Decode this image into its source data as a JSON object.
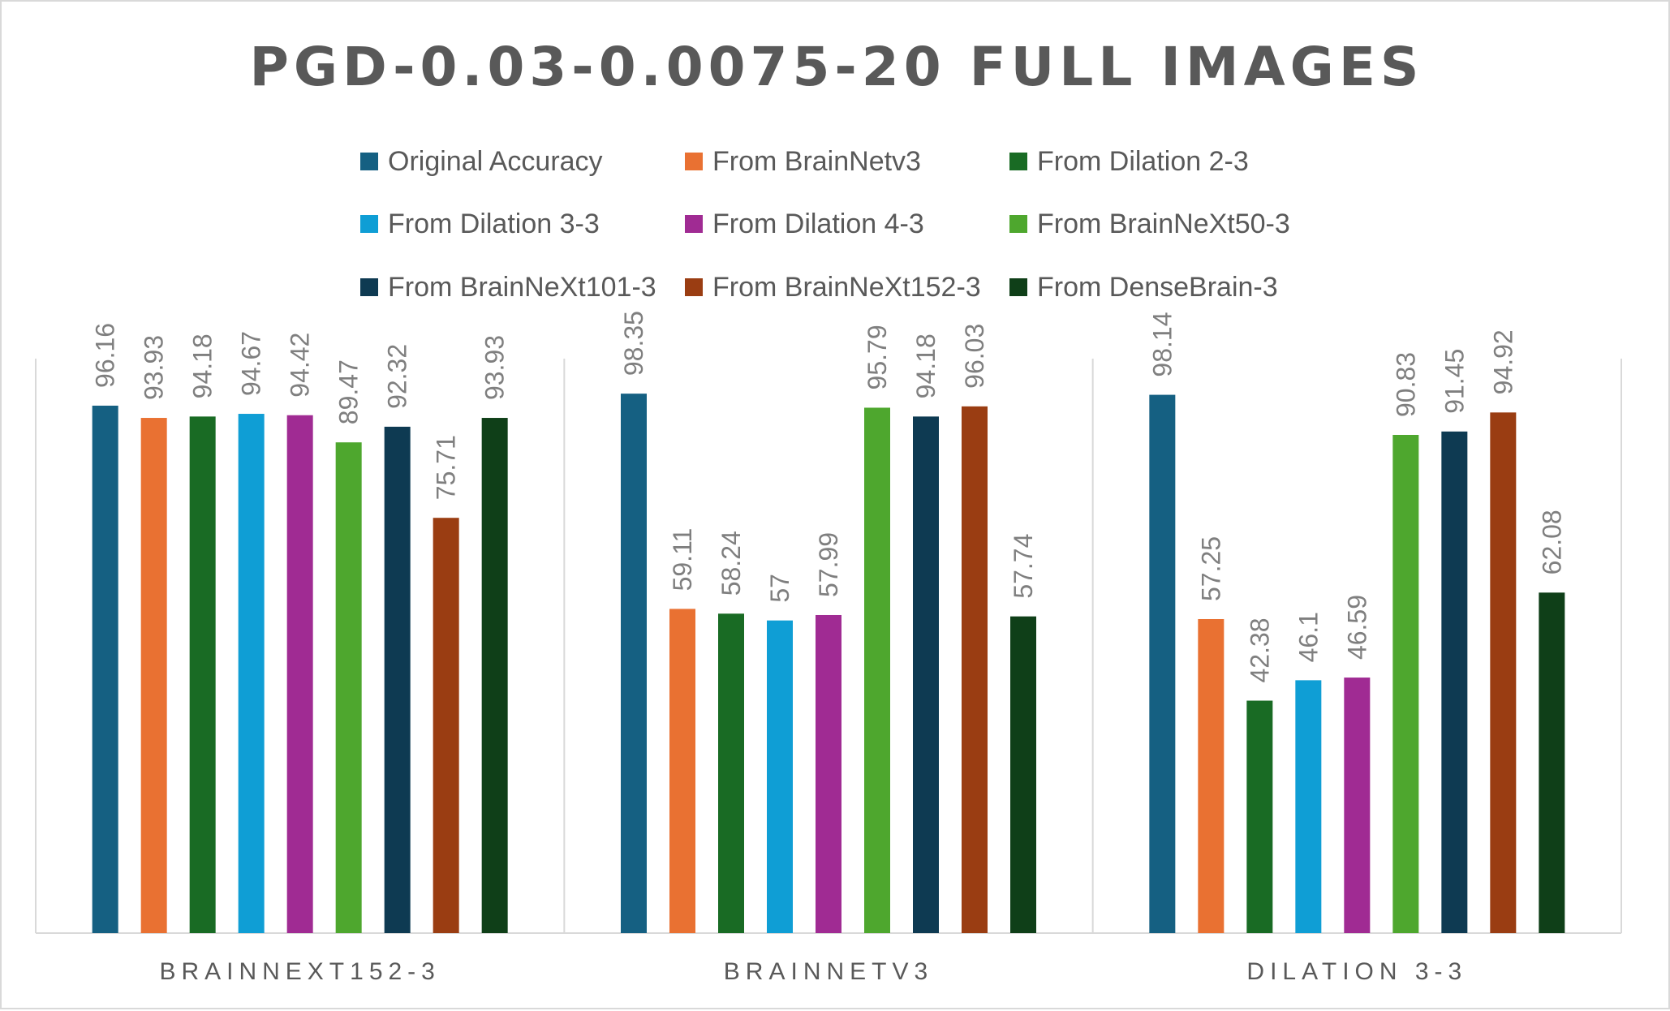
{
  "chart_data": {
    "type": "bar",
    "title": "PGD-0.03-0.0075-20 FULL IMAGES",
    "xlabel": "",
    "ylabel": "",
    "ylim": [
      0,
      103
    ],
    "grid": "vertical category separators only",
    "legend_position": "top",
    "categories": [
      "BRAINNEXT152-3",
      "BRAINNETV3",
      "DILATION 3-3"
    ],
    "series": [
      {
        "name": "Original Accuracy",
        "color": "#156082",
        "values": [
          96.16,
          98.35,
          98.14
        ],
        "labels": [
          "96.16",
          "98.35",
          "98.14"
        ]
      },
      {
        "name": "From BrainNetv3",
        "color": "#e97132",
        "values": [
          93.93,
          59.11,
          57.25
        ],
        "labels": [
          "93.93",
          "59.11",
          "57.25"
        ]
      },
      {
        "name": "From Dilation 2-3",
        "color": "#196b24",
        "values": [
          94.18,
          58.24,
          42.38
        ],
        "labels": [
          "94.18",
          "58.24",
          "42.38"
        ]
      },
      {
        "name": "From Dilation 3-3",
        "color": "#0f9ed5",
        "values": [
          94.67,
          57,
          46.1
        ],
        "labels": [
          "94.67",
          "57",
          "46.1"
        ]
      },
      {
        "name": "From Dilation 4-3",
        "color": "#a02b93",
        "values": [
          94.42,
          57.99,
          46.59
        ],
        "labels": [
          "94.42",
          "57.99",
          "46.59"
        ]
      },
      {
        "name": "From BrainNeXt50-3",
        "color": "#4ea72e",
        "values": [
          89.47,
          95.79,
          90.83
        ],
        "labels": [
          "89.47",
          "95.79",
          "90.83"
        ]
      },
      {
        "name": "From BrainNeXt101-3",
        "color": "#0e3a52",
        "values": [
          92.32,
          94.18,
          91.45
        ],
        "labels": [
          "92.32",
          "94.18",
          "91.45"
        ]
      },
      {
        "name": "From BrainNeXt152-3",
        "color": "#9a3d12",
        "values": [
          75.71,
          96.03,
          94.92
        ],
        "labels": [
          "75.71",
          "96.03",
          "94.92"
        ]
      },
      {
        "name": "From DenseBrain-3",
        "color": "#0f3f18",
        "values": [
          93.93,
          57.74,
          62.08
        ],
        "labels": [
          "93.93",
          "57.74",
          "62.08"
        ]
      }
    ]
  }
}
